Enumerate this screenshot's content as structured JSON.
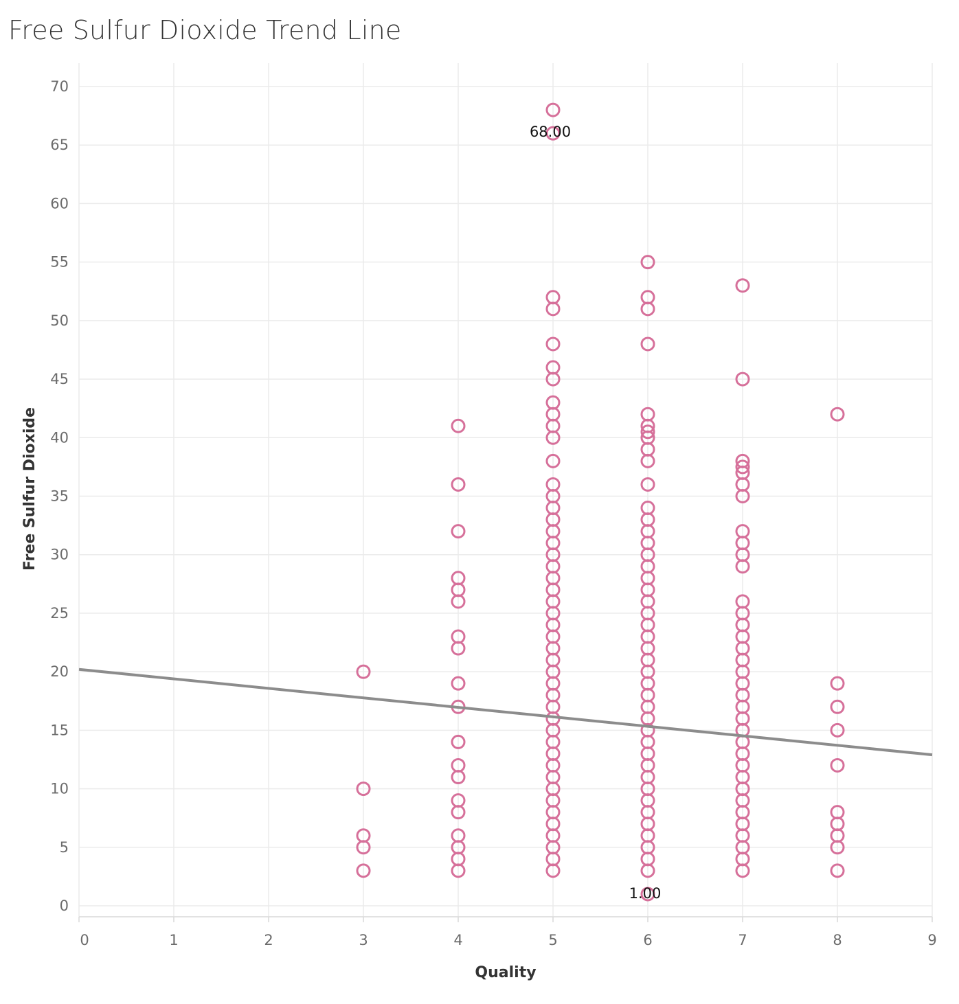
{
  "chart_data": {
    "type": "scatter",
    "title": "Free Sulfur Dioxide Trend Line",
    "xlabel": "Quality",
    "ylabel": "Free Sulfur Dioxide",
    "xlim": [
      0,
      9
    ],
    "ylim": [
      0,
      70
    ],
    "x_ticks": [
      "0",
      "1",
      "2",
      "3",
      "4",
      "5",
      "6",
      "7",
      "8",
      "9"
    ],
    "y_ticks": [
      "0",
      "5",
      "10",
      "15",
      "20",
      "25",
      "30",
      "35",
      "40",
      "45",
      "50",
      "55",
      "60",
      "65",
      "70"
    ],
    "grid": true,
    "marker": "hollow-circle",
    "series": [
      {
        "points": [
          {
            "x": 3,
            "values": [
              3,
              5,
              6,
              10,
              20
            ]
          },
          {
            "x": 4,
            "values": [
              3,
              4,
              5,
              6,
              8,
              9,
              11,
              12,
              14,
              17,
              19,
              22,
              23,
              26,
              27,
              28,
              32,
              36,
              41
            ]
          },
          {
            "x": 5,
            "values": [
              3,
              4,
              5,
              6,
              7,
              8,
              9,
              10,
              11,
              12,
              13,
              14,
              15,
              16,
              17,
              18,
              19,
              20,
              21,
              22,
              23,
              24,
              25,
              26,
              27,
              28,
              29,
              30,
              31,
              32,
              33,
              34,
              35,
              36,
              38,
              40,
              41,
              42,
              43,
              45,
              46,
              48,
              51,
              52,
              66,
              68
            ]
          },
          {
            "x": 6,
            "values": [
              1,
              3,
              4,
              5,
              6,
              7,
              8,
              9,
              10,
              11,
              12,
              13,
              14,
              15,
              16,
              17,
              18,
              19,
              20,
              21,
              22,
              23,
              24,
              25,
              26,
              27,
              28,
              29,
              30,
              31,
              32,
              33,
              34,
              36,
              38,
              39,
              40,
              40.5,
              41,
              42,
              48,
              51,
              52,
              55
            ]
          },
          {
            "x": 7,
            "values": [
              3,
              4,
              5,
              6,
              7,
              8,
              9,
              10,
              11,
              12,
              13,
              14,
              15,
              16,
              17,
              18,
              19,
              20,
              21,
              22,
              23,
              24,
              25,
              26,
              29,
              30,
              31,
              32,
              35,
              36,
              37,
              37.5,
              38,
              45,
              53
            ]
          },
          {
            "x": 8,
            "values": [
              3,
              5,
              6,
              7,
              8,
              12,
              15,
              17,
              19,
              42
            ]
          }
        ]
      }
    ],
    "trend_line": {
      "x_start": 0,
      "y_start": 20.2,
      "x_end": 9,
      "y_end": 12.9
    },
    "annotations": [
      {
        "x": 5,
        "y": 68,
        "text": "68.00"
      },
      {
        "x": 6,
        "y": 1,
        "text": "1.00"
      }
    ],
    "colors": {
      "marker": "#d6709a",
      "trend": "#8c8c8c",
      "grid": "#ebebeb"
    }
  }
}
